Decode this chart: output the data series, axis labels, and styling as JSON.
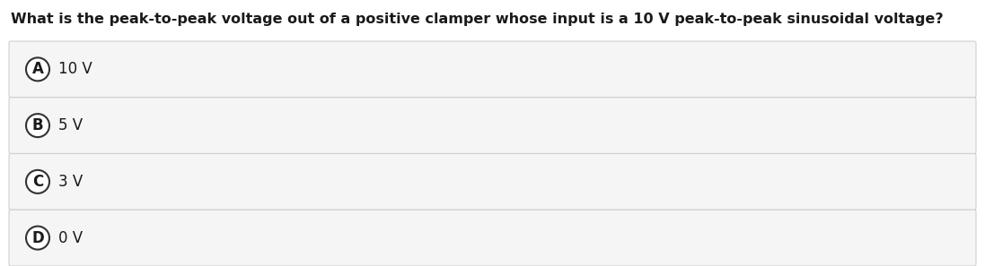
{
  "question": "What is the peak-to-peak voltage out of a positive clamper whose input is a 10 V peak-to-peak sinusoidal voltage?",
  "options": [
    {
      "label": "A",
      "text": "10 V"
    },
    {
      "label": "B",
      "text": "5 V"
    },
    {
      "label": "C",
      "text": "3 V"
    },
    {
      "label": "D",
      "text": "0 V"
    }
  ],
  "background_color": "#ffffff",
  "option_bg_color": "#f5f5f5",
  "option_border_color": "#d0d0d0",
  "text_color": "#1a1a1a",
  "circle_edge_color": "#333333",
  "circle_face_color": "#ffffff",
  "question_fontsize": 11.5,
  "option_fontsize": 12,
  "label_fontsize": 12,
  "fig_width": 10.97,
  "fig_height": 2.97,
  "dpi": 100
}
